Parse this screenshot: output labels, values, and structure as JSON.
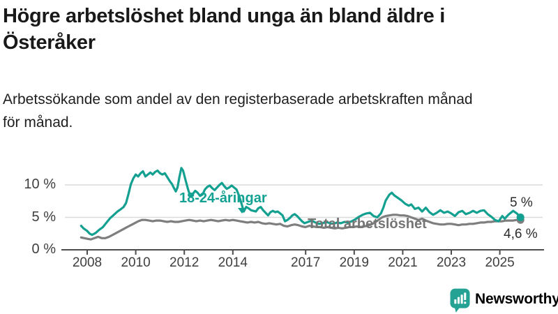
{
  "header": {
    "title_line1": "Högre arbetslöshet bland unga än bland äldre i",
    "title_line2": "Österåker",
    "subtitle_line1": "Arbetssökande som andel av den registerbaserade arbetskraften månad",
    "subtitle_line2": "för månad."
  },
  "chart_data": {
    "type": "line",
    "title": "Högre arbetslöshet bland unga än bland äldre i Österåker",
    "subtitle": "Arbetssökande som andel av den registerbaserade arbetskraften månad för månad.",
    "x_ticks": [
      2008,
      2010,
      2012,
      2014,
      2017,
      2019,
      2021,
      2023,
      2025
    ],
    "x_tick_labels": [
      "2008",
      "2010",
      "2012",
      "2014",
      "2017",
      "2019",
      "2021",
      "2023",
      "2025"
    ],
    "y_ticks": [
      0,
      5,
      10
    ],
    "y_tick_labels": [
      "0 %",
      "5 %",
      "10 %"
    ],
    "ylabel": "",
    "xlabel": "",
    "ylim": [
      0,
      13.5
    ],
    "xlim": [
      2007.75,
      2026.6
    ],
    "grid": "horizontal",
    "legend_position": "inline-labels",
    "series": [
      {
        "name": "18-24-åringar",
        "color": "#14a090",
        "end_label": "5 %",
        "end_value": 5.0,
        "points": [
          [
            2007.75,
            3.7
          ],
          [
            2007.85,
            3.3
          ],
          [
            2008.0,
            2.9
          ],
          [
            2008.1,
            2.5
          ],
          [
            2008.2,
            2.3
          ],
          [
            2008.35,
            2.6
          ],
          [
            2008.5,
            3.1
          ],
          [
            2008.65,
            3.5
          ],
          [
            2008.8,
            4.2
          ],
          [
            2008.95,
            4.9
          ],
          [
            2009.1,
            5.4
          ],
          [
            2009.25,
            5.9
          ],
          [
            2009.4,
            6.3
          ],
          [
            2009.5,
            6.6
          ],
          [
            2009.6,
            7.2
          ],
          [
            2009.7,
            8.6
          ],
          [
            2009.8,
            10.1
          ],
          [
            2009.9,
            11.0
          ],
          [
            2010.0,
            11.6
          ],
          [
            2010.1,
            11.3
          ],
          [
            2010.2,
            11.8
          ],
          [
            2010.3,
            12.1
          ],
          [
            2010.4,
            11.3
          ],
          [
            2010.5,
            11.6
          ],
          [
            2010.6,
            11.9
          ],
          [
            2010.7,
            11.6
          ],
          [
            2010.8,
            12.0
          ],
          [
            2010.9,
            12.2
          ],
          [
            2011.0,
            11.8
          ],
          [
            2011.1,
            11.6
          ],
          [
            2011.2,
            11.8
          ],
          [
            2011.3,
            11.2
          ],
          [
            2011.4,
            10.6
          ],
          [
            2011.5,
            10.1
          ],
          [
            2011.55,
            9.7
          ],
          [
            2011.65,
            9.0
          ],
          [
            2011.72,
            9.6
          ],
          [
            2011.8,
            11.2
          ],
          [
            2011.88,
            12.6
          ],
          [
            2011.95,
            12.2
          ],
          [
            2012.05,
            10.8
          ],
          [
            2012.15,
            9.4
          ],
          [
            2012.25,
            8.2
          ],
          [
            2012.35,
            8.6
          ],
          [
            2012.45,
            9.1
          ],
          [
            2012.55,
            8.8
          ],
          [
            2012.65,
            8.3
          ],
          [
            2012.75,
            8.5
          ],
          [
            2012.85,
            9.3
          ],
          [
            2012.95,
            9.7
          ],
          [
            2013.05,
            9.9
          ],
          [
            2013.15,
            9.5
          ],
          [
            2013.25,
            9.2
          ],
          [
            2013.35,
            9.6
          ],
          [
            2013.45,
            10.0
          ],
          [
            2013.55,
            10.3
          ],
          [
            2013.65,
            9.8
          ],
          [
            2013.75,
            9.4
          ],
          [
            2013.85,
            9.6
          ],
          [
            2013.95,
            9.9
          ],
          [
            2014.05,
            9.6
          ],
          [
            2014.15,
            9.3
          ],
          [
            2014.25,
            8.4
          ],
          [
            2014.35,
            7.2
          ],
          [
            2014.45,
            5.9
          ],
          [
            2014.55,
            6.6
          ],
          [
            2014.65,
            6.4
          ],
          [
            2014.75,
            6.1
          ],
          [
            2014.85,
            6.0
          ],
          [
            2014.95,
            5.9
          ],
          [
            2015.05,
            6.4
          ],
          [
            2015.15,
            6.6
          ],
          [
            2015.25,
            6.1
          ],
          [
            2015.35,
            5.7
          ],
          [
            2015.45,
            5.3
          ],
          [
            2015.55,
            5.8
          ],
          [
            2015.65,
            6.0
          ],
          [
            2015.75,
            5.8
          ],
          [
            2015.85,
            5.9
          ],
          [
            2015.95,
            5.6
          ],
          [
            2016.05,
            5.3
          ],
          [
            2016.15,
            4.4
          ],
          [
            2016.25,
            4.6
          ],
          [
            2016.35,
            4.9
          ],
          [
            2016.45,
            5.3
          ],
          [
            2016.55,
            5.5
          ],
          [
            2016.65,
            5.2
          ],
          [
            2016.75,
            4.8
          ],
          [
            2016.85,
            4.4
          ],
          [
            2016.95,
            4.1
          ],
          [
            2017.1,
            4.3
          ],
          [
            2017.25,
            4.5
          ],
          [
            2017.4,
            4.2
          ],
          [
            2017.55,
            4.0
          ],
          [
            2017.7,
            4.1
          ],
          [
            2017.85,
            4.3
          ],
          [
            2018.0,
            4.1
          ],
          [
            2018.15,
            4.0
          ],
          [
            2018.3,
            4.2
          ],
          [
            2018.45,
            4.1
          ],
          [
            2018.6,
            4.3
          ],
          [
            2018.75,
            4.2
          ],
          [
            2018.9,
            4.4
          ],
          [
            2019.05,
            4.7
          ],
          [
            2019.2,
            5.1
          ],
          [
            2019.35,
            5.4
          ],
          [
            2019.5,
            5.6
          ],
          [
            2019.65,
            5.7
          ],
          [
            2019.8,
            5.2
          ],
          [
            2019.95,
            5.0
          ],
          [
            2020.1,
            5.6
          ],
          [
            2020.2,
            6.5
          ],
          [
            2020.3,
            7.6
          ],
          [
            2020.45,
            8.5
          ],
          [
            2020.55,
            8.8
          ],
          [
            2020.65,
            8.4
          ],
          [
            2020.8,
            8.0
          ],
          [
            2020.95,
            7.6
          ],
          [
            2021.1,
            7.1
          ],
          [
            2021.25,
            6.8
          ],
          [
            2021.35,
            7.0
          ],
          [
            2021.5,
            6.3
          ],
          [
            2021.65,
            6.5
          ],
          [
            2021.8,
            5.9
          ],
          [
            2021.95,
            6.5
          ],
          [
            2022.1,
            5.8
          ],
          [
            2022.25,
            5.4
          ],
          [
            2022.4,
            5.7
          ],
          [
            2022.55,
            6.1
          ],
          [
            2022.7,
            5.7
          ],
          [
            2022.85,
            5.9
          ],
          [
            2023.0,
            5.6
          ],
          [
            2023.15,
            5.2
          ],
          [
            2023.3,
            5.8
          ],
          [
            2023.45,
            6.0
          ],
          [
            2023.6,
            5.5
          ],
          [
            2023.75,
            5.7
          ],
          [
            2023.9,
            6.0
          ],
          [
            2024.05,
            5.7
          ],
          [
            2024.2,
            6.0
          ],
          [
            2024.35,
            6.1
          ],
          [
            2024.5,
            5.5
          ],
          [
            2024.65,
            5.1
          ],
          [
            2024.8,
            4.6
          ],
          [
            2024.95,
            4.4
          ],
          [
            2025.1,
            5.2
          ],
          [
            2025.2,
            4.8
          ],
          [
            2025.35,
            5.4
          ],
          [
            2025.55,
            6.0
          ],
          [
            2025.7,
            5.6
          ],
          [
            2025.85,
            5.0
          ]
        ]
      },
      {
        "name": "Total arbetslöshet",
        "color": "#7e7e7e",
        "end_label": "4,6 %",
        "end_value": 4.6,
        "points": [
          [
            2007.75,
            1.9
          ],
          [
            2008.0,
            1.7
          ],
          [
            2008.15,
            1.6
          ],
          [
            2008.3,
            1.8
          ],
          [
            2008.45,
            2.0
          ],
          [
            2008.6,
            1.8
          ],
          [
            2008.75,
            1.8
          ],
          [
            2008.9,
            2.0
          ],
          [
            2009.05,
            2.3
          ],
          [
            2009.2,
            2.6
          ],
          [
            2009.35,
            2.9
          ],
          [
            2009.5,
            3.2
          ],
          [
            2009.65,
            3.5
          ],
          [
            2009.8,
            3.8
          ],
          [
            2009.95,
            4.1
          ],
          [
            2010.1,
            4.4
          ],
          [
            2010.25,
            4.6
          ],
          [
            2010.4,
            4.6
          ],
          [
            2010.55,
            4.5
          ],
          [
            2010.7,
            4.4
          ],
          [
            2010.85,
            4.5
          ],
          [
            2011.0,
            4.5
          ],
          [
            2011.15,
            4.4
          ],
          [
            2011.3,
            4.3
          ],
          [
            2011.45,
            4.4
          ],
          [
            2011.6,
            4.3
          ],
          [
            2011.75,
            4.3
          ],
          [
            2011.9,
            4.4
          ],
          [
            2012.05,
            4.5
          ],
          [
            2012.2,
            4.6
          ],
          [
            2012.35,
            4.5
          ],
          [
            2012.5,
            4.4
          ],
          [
            2012.65,
            4.5
          ],
          [
            2012.8,
            4.4
          ],
          [
            2012.95,
            4.5
          ],
          [
            2013.1,
            4.6
          ],
          [
            2013.25,
            4.5
          ],
          [
            2013.4,
            4.4
          ],
          [
            2013.55,
            4.5
          ],
          [
            2013.7,
            4.6
          ],
          [
            2013.85,
            4.5
          ],
          [
            2014.0,
            4.6
          ],
          [
            2014.15,
            4.5
          ],
          [
            2014.3,
            4.4
          ],
          [
            2014.45,
            4.3
          ],
          [
            2014.6,
            4.2
          ],
          [
            2014.75,
            4.3
          ],
          [
            2014.9,
            4.2
          ],
          [
            2015.05,
            4.3
          ],
          [
            2015.2,
            4.1
          ],
          [
            2015.35,
            4.0
          ],
          [
            2015.5,
            4.1
          ],
          [
            2015.65,
            4.0
          ],
          [
            2015.8,
            3.9
          ],
          [
            2015.95,
            4.0
          ],
          [
            2016.1,
            3.7
          ],
          [
            2016.25,
            3.6
          ],
          [
            2016.4,
            3.8
          ],
          [
            2016.55,
            3.9
          ],
          [
            2016.7,
            3.8
          ],
          [
            2016.85,
            3.6
          ],
          [
            2017.0,
            3.5
          ],
          [
            2017.15,
            3.7
          ],
          [
            2017.3,
            3.6
          ],
          [
            2017.45,
            3.5
          ],
          [
            2017.6,
            3.5
          ],
          [
            2017.75,
            3.4
          ],
          [
            2017.9,
            3.5
          ],
          [
            2018.05,
            3.4
          ],
          [
            2018.2,
            3.3
          ],
          [
            2018.35,
            3.4
          ],
          [
            2018.5,
            3.3
          ],
          [
            2018.65,
            3.4
          ],
          [
            2018.8,
            3.5
          ],
          [
            2018.95,
            3.5
          ],
          [
            2019.1,
            3.6
          ],
          [
            2019.25,
            3.5
          ],
          [
            2019.4,
            3.6
          ],
          [
            2019.55,
            3.7
          ],
          [
            2019.7,
            3.9
          ],
          [
            2019.85,
            4.2
          ],
          [
            2020.0,
            4.6
          ],
          [
            2020.15,
            5.0
          ],
          [
            2020.3,
            5.2
          ],
          [
            2020.45,
            5.3
          ],
          [
            2020.6,
            5.4
          ],
          [
            2020.75,
            5.4
          ],
          [
            2020.9,
            5.3
          ],
          [
            2021.05,
            5.3
          ],
          [
            2021.2,
            5.2
          ],
          [
            2021.35,
            5.0
          ],
          [
            2021.5,
            4.8
          ],
          [
            2021.65,
            4.6
          ],
          [
            2021.8,
            4.8
          ],
          [
            2021.95,
            4.5
          ],
          [
            2022.1,
            4.3
          ],
          [
            2022.25,
            4.1
          ],
          [
            2022.4,
            4.0
          ],
          [
            2022.55,
            3.9
          ],
          [
            2022.7,
            3.9
          ],
          [
            2022.85,
            4.0
          ],
          [
            2023.0,
            4.0
          ],
          [
            2023.15,
            3.9
          ],
          [
            2023.3,
            3.8
          ],
          [
            2023.45,
            3.9
          ],
          [
            2023.6,
            3.9
          ],
          [
            2023.75,
            4.0
          ],
          [
            2023.9,
            4.0
          ],
          [
            2024.05,
            4.1
          ],
          [
            2024.2,
            4.2
          ],
          [
            2024.35,
            4.2
          ],
          [
            2024.5,
            4.3
          ],
          [
            2024.65,
            4.3
          ],
          [
            2024.8,
            4.4
          ],
          [
            2024.95,
            4.4
          ],
          [
            2025.1,
            4.4
          ],
          [
            2025.25,
            4.5
          ],
          [
            2025.4,
            4.5
          ],
          [
            2025.55,
            4.5
          ],
          [
            2025.7,
            4.6
          ],
          [
            2025.85,
            4.6
          ]
        ]
      }
    ]
  },
  "branding": {
    "logo_text": "Newsworthy",
    "brand_color": "#24a294"
  }
}
